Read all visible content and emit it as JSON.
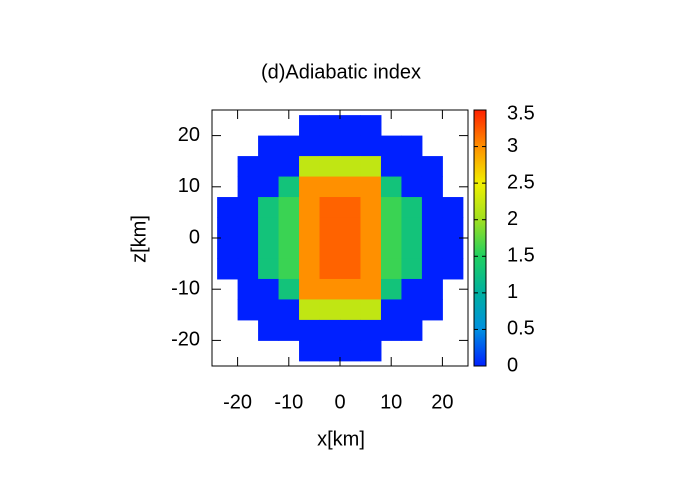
{
  "chart_data": {
    "type": "heatmap",
    "title": "(d)Adiabatic index",
    "xlabel": "x[km]",
    "ylabel": "z[km]",
    "x": [
      -22,
      -18,
      -14,
      -10,
      -6,
      -2,
      2,
      6,
      10,
      14,
      18,
      22
    ],
    "y": [
      22,
      18,
      14,
      10,
      6,
      2,
      -2,
      -6,
      -10,
      -14,
      -18,
      -22
    ],
    "cell": 4,
    "values": [
      [
        null,
        null,
        null,
        null,
        0,
        0,
        0,
        0,
        null,
        null,
        null,
        null
      ],
      [
        null,
        null,
        0,
        0,
        0,
        0,
        0,
        0,
        0,
        0,
        null,
        null
      ],
      [
        null,
        0,
        0,
        0,
        2.2,
        2.2,
        2.2,
        2.2,
        0,
        0,
        0,
        null
      ],
      [
        null,
        0,
        0,
        1.3,
        3.0,
        3.0,
        3.0,
        3.0,
        1.3,
        0,
        0,
        null
      ],
      [
        0,
        0,
        1.3,
        1.6,
        3.0,
        3.2,
        3.2,
        3.0,
        1.6,
        1.3,
        0,
        0
      ],
      [
        0,
        0,
        1.3,
        1.6,
        3.0,
        3.2,
        3.2,
        3.0,
        1.6,
        1.3,
        0,
        0
      ],
      [
        0,
        0,
        1.3,
        1.6,
        3.0,
        3.2,
        3.2,
        3.0,
        1.6,
        1.3,
        0,
        0
      ],
      [
        0,
        0,
        1.3,
        1.6,
        3.0,
        3.2,
        3.2,
        3.0,
        1.6,
        1.3,
        0,
        0
      ],
      [
        null,
        0,
        0,
        1.3,
        3.0,
        3.0,
        3.0,
        3.0,
        1.3,
        0,
        0,
        null
      ],
      [
        null,
        0,
        0,
        0,
        2.2,
        2.2,
        2.2,
        2.2,
        0,
        0,
        0,
        null
      ],
      [
        null,
        null,
        0,
        0,
        0,
        0,
        0,
        0,
        0,
        0,
        null,
        null
      ],
      [
        null,
        null,
        null,
        null,
        0,
        0,
        0,
        0,
        null,
        null,
        null,
        null
      ]
    ],
    "xlim": [
      -25,
      25
    ],
    "ylim": [
      -25,
      25
    ],
    "xticks": [
      -20,
      -10,
      0,
      10,
      20
    ],
    "yticks": [
      -20,
      -10,
      0,
      10,
      20
    ],
    "clim": [
      0,
      3.5
    ],
    "cticks": [
      0,
      0.5,
      1,
      1.5,
      2,
      2.5,
      3,
      3.5
    ],
    "colorscale": [
      "#0020ff",
      "#0090e0",
      "#00b0a0",
      "#20d060",
      "#a0e020",
      "#f0f000",
      "#ff9000",
      "#ff2000"
    ]
  }
}
